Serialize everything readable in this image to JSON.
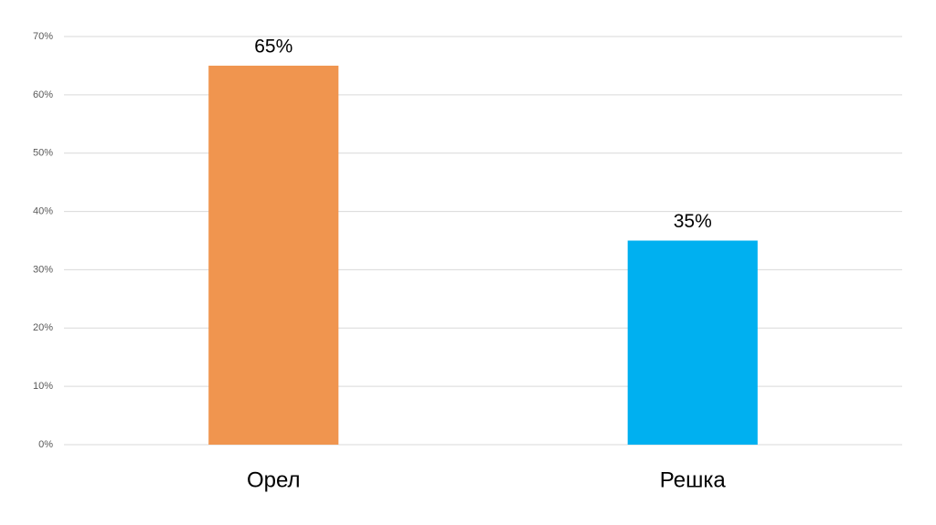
{
  "chart_data": {
    "type": "bar",
    "categories": [
      "Орел",
      "Решка"
    ],
    "values": [
      65,
      35
    ],
    "value_labels": [
      "65%",
      "35%"
    ],
    "colors": [
      "#f0954f",
      "#00b0f0"
    ],
    "ylim": [
      0,
      70
    ],
    "yticks": [
      {
        "value": 0,
        "label": "0%"
      },
      {
        "value": 10,
        "label": "10%"
      },
      {
        "value": 20,
        "label": "20%"
      },
      {
        "value": 30,
        "label": "30%"
      },
      {
        "value": 40,
        "label": "40%"
      },
      {
        "value": 50,
        "label": "50%"
      },
      {
        "value": 60,
        "label": "60%"
      },
      {
        "value": 70,
        "label": "70%"
      }
    ],
    "grid": true
  }
}
